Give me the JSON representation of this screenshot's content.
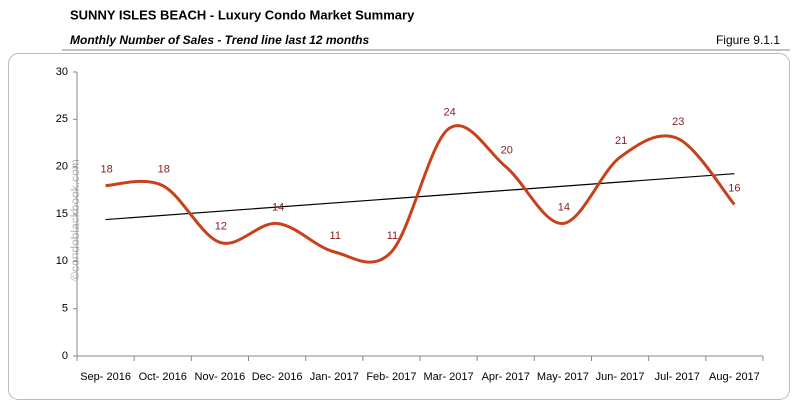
{
  "header": {
    "title": "SUNNY ISLES BEACH - Luxury Condo Market Summary",
    "subtitle": "Monthly Number of Sales - Trend line last 12 months",
    "figure": "Figure 9.1.1"
  },
  "chart_data": {
    "type": "line",
    "watermark": "©condoblackbook.com",
    "categories": [
      "Sep- 2016",
      "Oct- 2016",
      "Nov- 2016",
      "Dec- 2016",
      "Jan- 2017",
      "Feb- 2017",
      "Mar- 2017",
      "Apr- 2017",
      "May- 2017",
      "Jun- 2017",
      "Jul- 2017",
      "Aug- 2017"
    ],
    "series": [
      {
        "name": "Sales",
        "color": "#c9401c",
        "values": [
          18,
          18,
          12,
          14,
          11,
          11,
          24,
          20,
          14,
          21,
          23,
          16
        ]
      }
    ],
    "label_color": "#8b1a1a",
    "trendline": true,
    "trendline_color": "#000000",
    "ylim": [
      0,
      30
    ],
    "yticks": [
      0,
      5,
      10,
      15,
      20,
      25,
      30
    ],
    "grid": false
  }
}
